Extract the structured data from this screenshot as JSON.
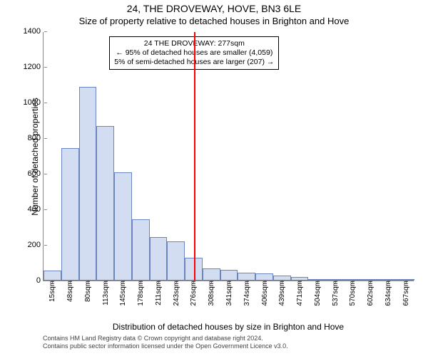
{
  "titles": {
    "line1": "24, THE DROVEWAY, HOVE, BN3 6LE",
    "line2": "Size of property relative to detached houses in Brighton and Hove"
  },
  "axes": {
    "xlabel": "Distribution of detached houses by size in Brighton and Hove",
    "ylabel": "Number of detached properties",
    "ylim": [
      0,
      1400
    ],
    "ytick_step": 200,
    "tick_fontsize": 11,
    "label_fontsize": 12
  },
  "chart": {
    "type": "histogram",
    "background_color": "#ffffff",
    "bar_fill": "#d3ddf2",
    "bar_border": "#6b85c1",
    "axis_color": "#888888",
    "marker_color": "#ff0000",
    "bar_width_ratio": 1.0,
    "categories": [
      "15sqm",
      "48sqm",
      "80sqm",
      "113sqm",
      "145sqm",
      "178sqm",
      "211sqm",
      "243sqm",
      "276sqm",
      "308sqm",
      "341sqm",
      "374sqm",
      "406sqm",
      "439sqm",
      "471sqm",
      "504sqm",
      "537sqm",
      "570sqm",
      "602sqm",
      "634sqm",
      "667sqm"
    ],
    "values": [
      55,
      745,
      1090,
      870,
      610,
      345,
      245,
      220,
      130,
      70,
      60,
      45,
      40,
      30,
      20,
      8,
      6,
      6,
      4,
      4,
      3
    ],
    "marker_value_sqm": 277
  },
  "annotation": {
    "line1": "24 THE DROVEWAY: 277sqm",
    "line2": "← 95% of detached houses are smaller (4,059)",
    "line3": "5% of semi-detached houses are larger (207) →",
    "bg": "#ffffff",
    "border": "#000000",
    "fontsize": 10.5
  },
  "attribution": {
    "line1": "Contains HM Land Registry data © Crown copyright and database right 2024.",
    "line2": "Contains public sector information licensed under the Open Government Licence v3.0."
  }
}
